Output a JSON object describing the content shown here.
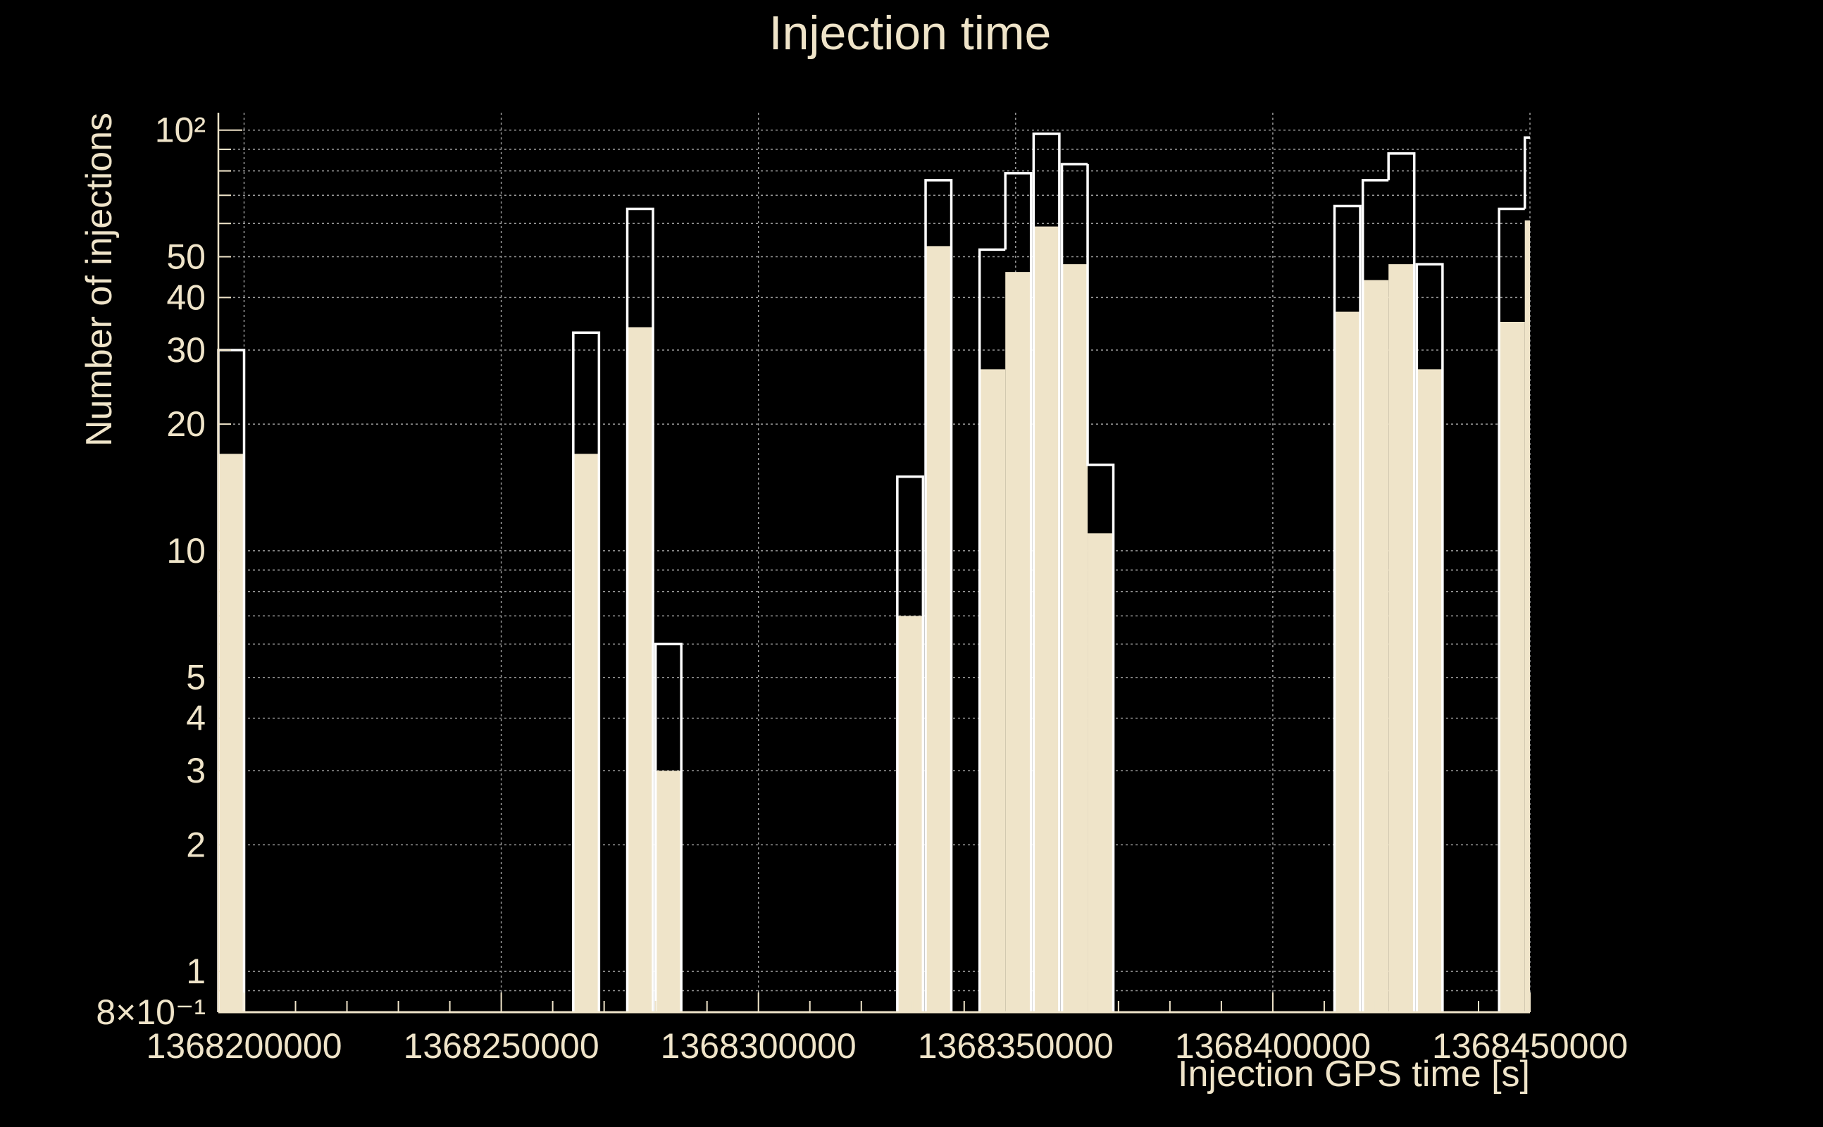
{
  "chart_data": {
    "type": "histogram",
    "title": "Injection time",
    "xlabel": "Injection GPS time [s]",
    "ylabel": "Number of injections",
    "xlim": [
      1368195000,
      1368450000
    ],
    "ylim": [
      0.8,
      110
    ],
    "yscale": "log",
    "grid": true,
    "bin_width": 5000,
    "x_ticks": [
      {
        "value": 1368200000,
        "label": "1368200000"
      },
      {
        "value": 1368250000,
        "label": "1368250000"
      },
      {
        "value": 1368300000,
        "label": "1368300000"
      },
      {
        "value": 1368350000,
        "label": "1368350000"
      },
      {
        "value": 1368400000,
        "label": "1368400000"
      },
      {
        "value": 1368450000,
        "label": "1368450000"
      }
    ],
    "y_ticks": [
      {
        "value": 0.8,
        "label": "8×10⁻¹"
      },
      {
        "value": 1,
        "label": "1"
      },
      {
        "value": 2,
        "label": "2"
      },
      {
        "value": 3,
        "label": "3"
      },
      {
        "value": 4,
        "label": "4"
      },
      {
        "value": 5,
        "label": "5"
      },
      {
        "value": 10,
        "label": "10"
      },
      {
        "value": 20,
        "label": "20"
      },
      {
        "value": 30,
        "label": "30"
      },
      {
        "value": 40,
        "label": "40"
      },
      {
        "value": 50,
        "label": "50"
      },
      {
        "value": 100,
        "label": "10²"
      }
    ],
    "series": [
      {
        "style": "filled",
        "color": "#efe4c9",
        "bins": [
          {
            "x": 1368195000,
            "value": 17
          },
          {
            "x": 1368264000,
            "value": 17
          },
          {
            "x": 1368274500,
            "value": 34
          },
          {
            "x": 1368280000,
            "value": 3
          },
          {
            "x": 1368327000,
            "value": 7
          },
          {
            "x": 1368332500,
            "value": 53
          },
          {
            "x": 1368343000,
            "value": 27
          },
          {
            "x": 1368348000,
            "value": 46
          },
          {
            "x": 1368353500,
            "value": 59
          },
          {
            "x": 1368359000,
            "value": 48
          },
          {
            "x": 1368364000,
            "value": 11
          },
          {
            "x": 1368412000,
            "value": 37
          },
          {
            "x": 1368417500,
            "value": 44
          },
          {
            "x": 1368422500,
            "value": 48
          },
          {
            "x": 1368428000,
            "value": 27
          },
          {
            "x": 1368444000,
            "value": 35
          },
          {
            "x": 1368449000,
            "value": 61
          }
        ]
      },
      {
        "style": "outline",
        "color": "#ffffff",
        "bins": [
          {
            "x": 1368195000,
            "value": 30
          },
          {
            "x": 1368264000,
            "value": 33
          },
          {
            "x": 1368274500,
            "value": 65
          },
          {
            "x": 1368280000,
            "value": 6
          },
          {
            "x": 1368327000,
            "value": 15
          },
          {
            "x": 1368332500,
            "value": 76
          },
          {
            "x": 1368343000,
            "value": 52
          },
          {
            "x": 1368348000,
            "value": 79
          },
          {
            "x": 1368353500,
            "value": 98
          },
          {
            "x": 1368359000,
            "value": 83
          },
          {
            "x": 1368364000,
            "value": 16
          },
          {
            "x": 1368412000,
            "value": 66
          },
          {
            "x": 1368417500,
            "value": 76
          },
          {
            "x": 1368422500,
            "value": 88
          },
          {
            "x": 1368428000,
            "value": 48
          },
          {
            "x": 1368444000,
            "value": 65
          },
          {
            "x": 1368449000,
            "value": 96
          }
        ]
      }
    ]
  }
}
